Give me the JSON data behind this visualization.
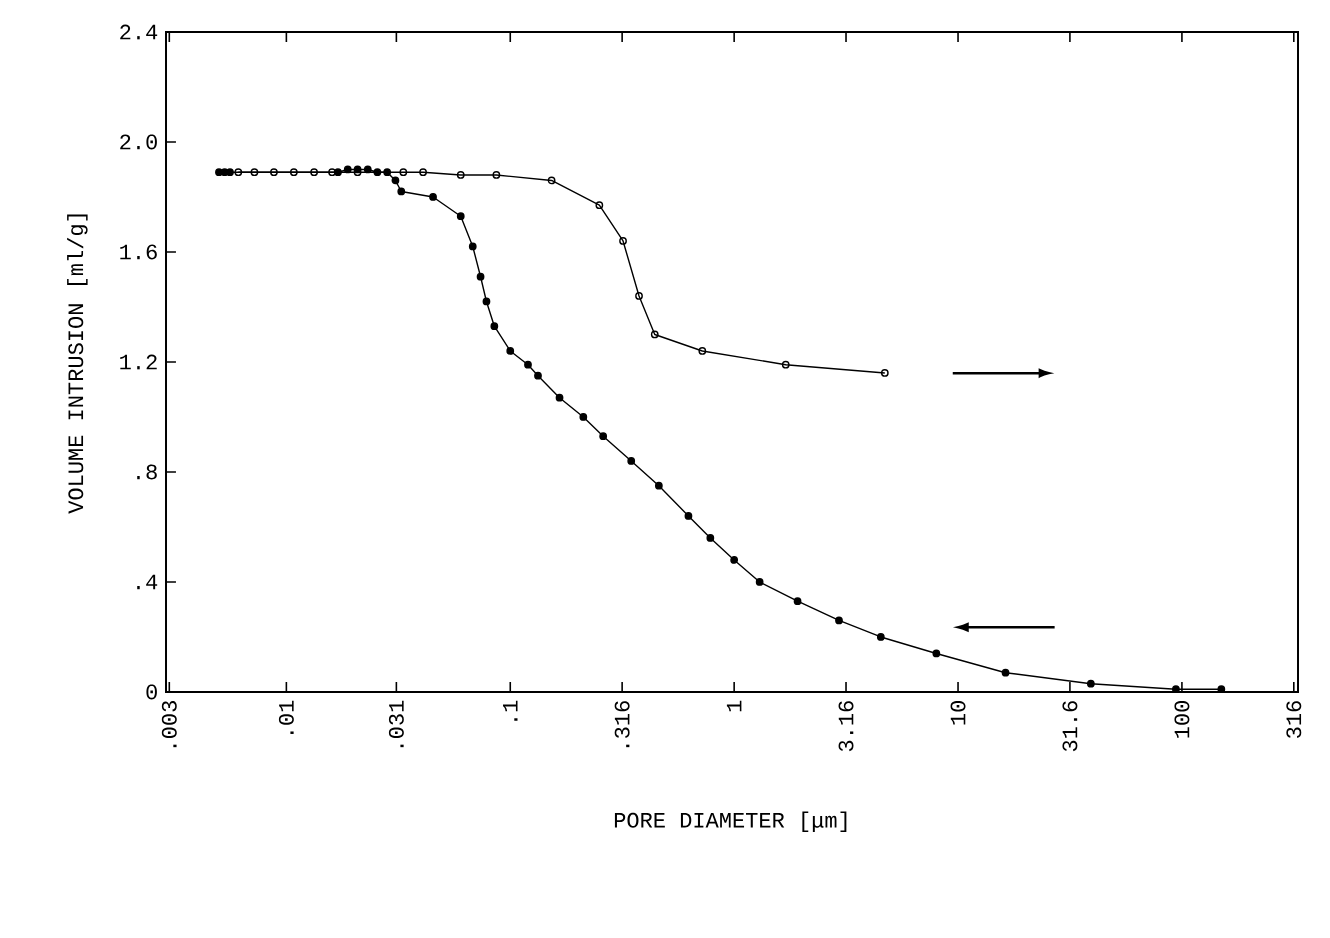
{
  "chart_data": {
    "type": "line",
    "xlabel": "PORE  DIAMETER   [μm]",
    "ylabel": "VOLUME INTRUSION [ml/g]",
    "log": "x",
    "marker": "circle",
    "line_style": "solid",
    "grid": false,
    "xlim": [
      0.0029,
      330
    ],
    "ylim": [
      0,
      2.4
    ],
    "xticks": [
      {
        "value": 0.003,
        "label": ".003"
      },
      {
        "value": 0.01,
        "label": ".01"
      },
      {
        "value": 0.031,
        "label": ".031"
      },
      {
        "value": 0.1,
        "label": ".1"
      },
      {
        "value": 0.316,
        "label": ".316"
      },
      1,
      3.16,
      10,
      31.6,
      100,
      316
    ],
    "yticks": [
      0,
      {
        "value": 0.4,
        "label": ".4"
      },
      {
        "value": 0.8,
        "label": ".8"
      },
      1.2,
      1.6,
      {
        "value": 2.0,
        "label": "2.0"
      },
      2.4
    ],
    "series": [
      {
        "color": "#000000",
        "x": [
          0.005,
          0.0053,
          0.0056,
          0.017,
          0.0188,
          0.0208,
          0.0231,
          0.0255,
          0.0282,
          0.0307,
          0.0326,
          0.0452,
          0.0601,
          0.068,
          0.0737,
          0.0783,
          0.0849,
          0.1,
          0.12,
          0.133,
          0.166,
          0.212,
          0.26,
          0.347,
          0.461,
          0.625,
          0.783,
          1.0,
          1.3,
          1.92,
          2.94,
          4.52,
          8.0,
          16.3,
          39.2,
          94,
          150
        ],
        "values": [
          1.89,
          1.89,
          1.89,
          1.89,
          1.9,
          1.9,
          1.9,
          1.89,
          1.89,
          1.86,
          1.82,
          1.8,
          1.73,
          1.62,
          1.51,
          1.42,
          1.33,
          1.24,
          1.19,
          1.15,
          1.07,
          1.0,
          0.93,
          0.84,
          0.75,
          0.64,
          0.56,
          0.48,
          0.4,
          0.33,
          0.26,
          0.2,
          0.14,
          0.07,
          0.03,
          0.01,
          0.01
        ]
      },
      {
        "color": "#000000",
        "x": [
          0.0061,
          0.0072,
          0.0088,
          0.0108,
          0.0133,
          0.016,
          0.0208,
          0.0333,
          0.0408,
          0.0601,
          0.0867,
          0.153,
          0.25,
          0.319,
          0.376,
          0.442,
          0.721,
          1.7,
          4.71
        ],
        "values": [
          1.89,
          1.89,
          1.89,
          1.89,
          1.89,
          1.89,
          1.89,
          1.89,
          1.89,
          1.88,
          1.88,
          1.86,
          1.77,
          1.64,
          1.44,
          1.3,
          1.24,
          1.19,
          1.16
        ]
      }
    ]
  }
}
